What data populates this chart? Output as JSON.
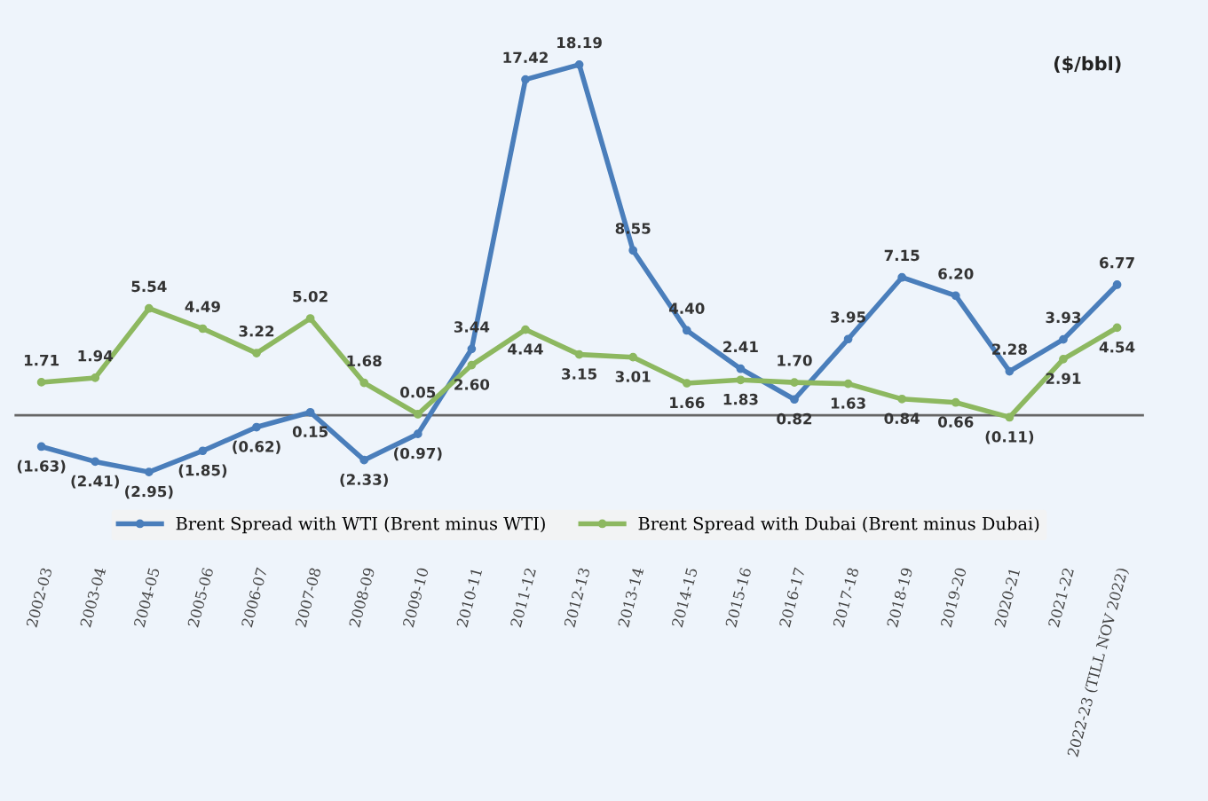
{
  "chart_data": {
    "type": "line",
    "categories": [
      "2002-03",
      "2003-04",
      "2004-05",
      "2005-06",
      "2006-07",
      "2007-08",
      "2008-09",
      "2009-10",
      "2010-11",
      "2011-12",
      "2012-13",
      "2013-14",
      "2014-15",
      "2015-16",
      "2016-17",
      "2017-18",
      "2018-19",
      "2019-20",
      "2020-21",
      "2021-22",
      "2022-23 (TILL NOV 2022)"
    ],
    "series": [
      {
        "name": "Brent Spread with WTI (Brent minus WTI)",
        "color": "#4a7ebb",
        "values": [
          -1.63,
          -2.41,
          -2.95,
          -1.85,
          -0.62,
          0.15,
          -2.33,
          -0.97,
          3.44,
          17.42,
          18.19,
          8.55,
          4.4,
          2.41,
          0.82,
          3.95,
          7.15,
          6.2,
          2.28,
          3.93,
          6.77
        ],
        "value_labels": [
          "(1.63)",
          "(2.41)",
          "(2.95)",
          "(1.85)",
          "(0.62)",
          "0.15",
          "(2.33)",
          "(0.97)",
          "3.44",
          "17.42",
          "18.19",
          "8.55",
          "4.40",
          "2.41",
          "0.82",
          "3.95",
          "7.15",
          "6.20",
          "2.28",
          "3.93",
          "6.77"
        ]
      },
      {
        "name": "Brent Spread with Dubai (Brent minus Dubai)",
        "color": "#8db860",
        "values": [
          1.71,
          1.94,
          5.54,
          4.49,
          3.22,
          5.02,
          1.68,
          0.05,
          2.6,
          4.44,
          3.15,
          3.01,
          1.66,
          1.83,
          1.7,
          1.63,
          0.84,
          0.66,
          -0.11,
          2.91,
          4.54
        ],
        "value_labels": [
          "1.71",
          "1.94",
          "5.54",
          "4.49",
          "3.22",
          "5.02",
          "1.68",
          "0.05",
          "2.60",
          "4.44",
          "3.15",
          "3.01",
          "1.66",
          "1.83",
          "1.70",
          "1.63",
          "0.84",
          "0.66",
          "(0.11)",
          "2.91",
          "4.54"
        ]
      }
    ],
    "annotations": [
      "($/bbl)"
    ],
    "legend": "bottom",
    "marker": "circle",
    "line_style": "solid",
    "grid": false
  }
}
